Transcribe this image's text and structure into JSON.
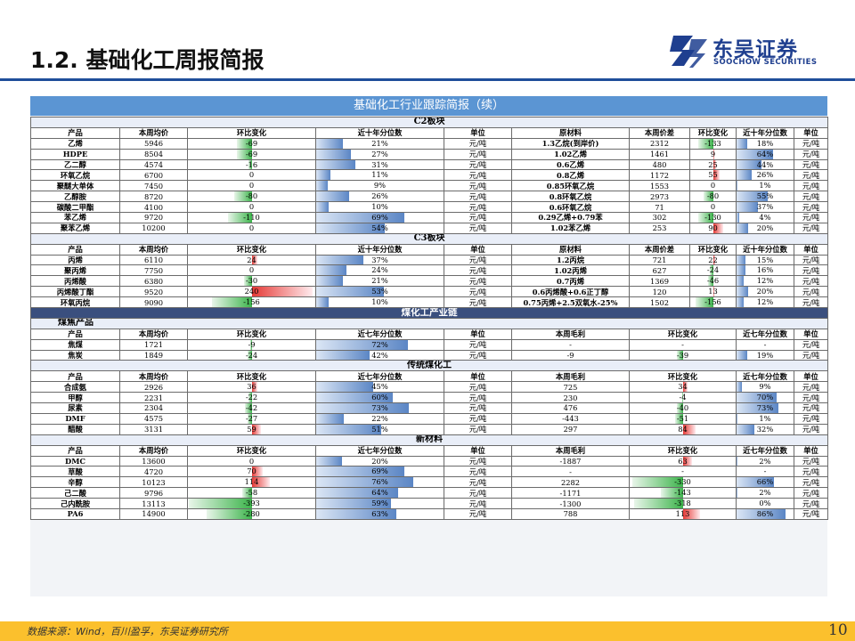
{
  "header": {
    "title": "1.2.  基础化工周报简报"
  },
  "logo": {
    "cn": "东吴证券",
    "en": "SOOCHOW SECURITIES"
  },
  "banner": "基础化工行业跟踪简报（续）",
  "colors": {
    "accent_blue": "#1f4e9a",
    "banner_blue": "#5b95d3",
    "section_dark": "#3a4f7e",
    "bar_green": "#3cb44b",
    "bar_red": "#e53935",
    "bar_blue": "#5b86c5",
    "footer_yellow": "#fbc02d"
  },
  "c2": {
    "title": "C2板块",
    "headers": [
      "产品",
      "本周均价",
      "环比变化",
      "近十年分位数",
      "单位",
      "原材料",
      "本周价差",
      "环比变化",
      "近十年分位数",
      "单位"
    ],
    "rows": [
      {
        "p": "乙烯",
        "price": "5946",
        "chg": "-69",
        "pct": "21%",
        "unit": "元/吨",
        "raw": "1.3乙烷(到岸价)",
        "spread": "2312",
        "schg": "-133",
        "spct": "18%",
        "sunit": "元/吨",
        "v1": -69,
        "v2": 0.21,
        "v3": -133,
        "v4": 0.18
      },
      {
        "p": "HDPE",
        "price": "8504",
        "chg": "-69",
        "pct": "27%",
        "unit": "元/吨",
        "raw": "1.02乙烯",
        "spread": "1461",
        "schg": "9",
        "spct": "64%",
        "sunit": "元/吨",
        "v1": -69,
        "v2": 0.27,
        "v3": 9,
        "v4": 0.64
      },
      {
        "p": "乙二醇",
        "price": "4574",
        "chg": "-16",
        "pct": "31%",
        "unit": "元/吨",
        "raw": "0.6乙烯",
        "spread": "480",
        "schg": "25",
        "spct": "44%",
        "sunit": "元/吨",
        "v1": -16,
        "v2": 0.31,
        "v3": 25,
        "v4": 0.44
      },
      {
        "p": "环氧乙烷",
        "price": "6700",
        "chg": "0",
        "pct": "11%",
        "unit": "元/吨",
        "raw": "0.8乙烯",
        "spread": "1172",
        "schg": "55",
        "spct": "26%",
        "sunit": "元/吨",
        "v1": 0,
        "v2": 0.11,
        "v3": 55,
        "v4": 0.26
      },
      {
        "p": "聚醚大单体",
        "price": "7450",
        "chg": "0",
        "pct": "9%",
        "unit": "元/吨",
        "raw": "0.85环氧乙烷",
        "spread": "1553",
        "schg": "0",
        "spct": "1%",
        "sunit": "元/吨",
        "v1": 0,
        "v2": 0.09,
        "v3": 0,
        "v4": 0.01
      },
      {
        "p": "乙醇胺",
        "price": "8720",
        "chg": "-80",
        "pct": "26%",
        "unit": "元/吨",
        "raw": "0.8环氧乙烷",
        "spread": "2973",
        "schg": "-80",
        "spct": "55%",
        "sunit": "元/吨",
        "v1": -80,
        "v2": 0.26,
        "v3": -80,
        "v4": 0.55
      },
      {
        "p": "碳酸二甲酯",
        "price": "4100",
        "chg": "0",
        "pct": "10%",
        "unit": "元/吨",
        "raw": "0.6环氧乙烷",
        "spread": "71",
        "schg": "0",
        "spct": "37%",
        "sunit": "元/吨",
        "v1": 0,
        "v2": 0.1,
        "v3": 0,
        "v4": 0.37
      },
      {
        "p": "苯乙烯",
        "price": "9720",
        "chg": "-110",
        "pct": "69%",
        "unit": "元/吨",
        "raw": "0.29乙烯+0.79苯",
        "spread": "302",
        "schg": "-130",
        "spct": "4%",
        "sunit": "元/吨",
        "v1": -110,
        "v2": 0.69,
        "v3": -130,
        "v4": 0.04
      },
      {
        "p": "聚苯乙烯",
        "price": "10200",
        "chg": "0",
        "pct": "54%",
        "unit": "元/吨",
        "raw": "1.02苯乙烯",
        "spread": "253",
        "schg": "90",
        "spct": "20%",
        "sunit": "元/吨",
        "v1": 0,
        "v2": 0.54,
        "v3": 90,
        "v4": 0.2
      }
    ]
  },
  "c3": {
    "title": "C3板块",
    "headers": [
      "产品",
      "本周均价",
      "环比变化",
      "近十年分位数",
      "单位",
      "原材料",
      "本周价差",
      "环比变化",
      "近十年分位数",
      "单位"
    ],
    "rows": [
      {
        "p": "丙烯",
        "price": "6110",
        "chg": "24",
        "pct": "37%",
        "unit": "元/吨",
        "raw": "1.2丙烷",
        "spread": "721",
        "schg": "22",
        "spct": "15%",
        "sunit": "元/吨",
        "v1": 24,
        "v2": 0.37,
        "v3": 22,
        "v4": 0.15
      },
      {
        "p": "聚丙烯",
        "price": "7750",
        "chg": "0",
        "pct": "24%",
        "unit": "元/吨",
        "raw": "1.02丙烯",
        "spread": "627",
        "schg": "-24",
        "spct": "16%",
        "sunit": "元/吨",
        "v1": 0,
        "v2": 0.24,
        "v3": -24,
        "v4": 0.16
      },
      {
        "p": "丙烯酸",
        "price": "6380",
        "chg": "-30",
        "pct": "21%",
        "unit": "元/吨",
        "raw": "0.7丙烯",
        "spread": "1369",
        "schg": "-46",
        "spct": "12%",
        "sunit": "元/吨",
        "v1": -30,
        "v2": 0.21,
        "v3": -46,
        "v4": 0.12
      },
      {
        "p": "丙烯酸丁酯",
        "price": "9520",
        "chg": "240",
        "pct": "53%",
        "unit": "元/吨",
        "raw": "0.6丙烯酸+0.6正丁醇",
        "spread": "120",
        "schg": "13",
        "spct": "20%",
        "sunit": "元/吨",
        "v1": 240,
        "v2": 0.53,
        "v3": 13,
        "v4": 0.2
      },
      {
        "p": "环氧丙烷",
        "price": "9090",
        "chg": "-156",
        "pct": "10%",
        "unit": "元/吨",
        "raw": "0.75丙烯+2.5双氧水-25%",
        "spread": "1502",
        "schg": "-156",
        "spct": "12%",
        "sunit": "元/吨",
        "v1": -156,
        "v2": 0.1,
        "v3": -156,
        "v4": 0.12
      }
    ]
  },
  "coal": {
    "title": "煤化工产业链",
    "coking": {
      "title": "煤焦产品",
      "headers": [
        "产品",
        "本周均价",
        "环比变化",
        "近七年分位数",
        "单位",
        "本周毛利",
        "环比变化",
        "近七年分位数",
        "单位"
      ],
      "rows": [
        {
          "p": "焦煤",
          "price": "1721",
          "chg": "-9",
          "pct": "72%",
          "unit": "元/吨",
          "gm": "-",
          "gchg": "-",
          "gpct": "-",
          "gunit": "元/吨",
          "v1": -9,
          "v2": 0.72,
          "v3": null,
          "v4": null
        },
        {
          "p": "焦炭",
          "price": "1849",
          "chg": "-24",
          "pct": "42%",
          "unit": "元/吨",
          "gm": "-9",
          "gchg": "-39",
          "gpct": "19%",
          "gunit": "元/吨",
          "v1": -24,
          "v2": 0.42,
          "v3": -39,
          "v4": 0.19
        }
      ]
    },
    "traditional": {
      "title": "传统煤化工",
      "headers": [
        "产品",
        "本周均价",
        "环比变化",
        "近七年分位数",
        "单位",
        "本周毛利",
        "环比变化",
        "近七年分位数",
        "单位"
      ],
      "rows": [
        {
          "p": "合成氨",
          "price": "2926",
          "chg": "36",
          "pct": "45%",
          "unit": "元/吨",
          "gm": "725",
          "gchg": "34",
          "gpct": "9%",
          "gunit": "元/吨",
          "v1": 36,
          "v2": 0.45,
          "v3": 34,
          "v4": 0.09
        },
        {
          "p": "甲醇",
          "price": "2231",
          "chg": "-22",
          "pct": "60%",
          "unit": "元/吨",
          "gm": "230",
          "gchg": "-4",
          "gpct": "70%",
          "gunit": "元/吨",
          "v1": -22,
          "v2": 0.6,
          "v3": -4,
          "v4": 0.7
        },
        {
          "p": "尿素",
          "price": "2304",
          "chg": "-42",
          "pct": "73%",
          "unit": "元/吨",
          "gm": "476",
          "gchg": "-40",
          "gpct": "73%",
          "gunit": "元/吨",
          "v1": -42,
          "v2": 0.73,
          "v3": -40,
          "v4": 0.73
        },
        {
          "p": "DMF",
          "price": "4575",
          "chg": "-27",
          "pct": "22%",
          "unit": "元/吨",
          "gm": "-443",
          "gchg": "-51",
          "gpct": "1%",
          "gunit": "元/吨",
          "v1": -27,
          "v2": 0.22,
          "v3": -51,
          "v4": 0.01
        },
        {
          "p": "醋酸",
          "price": "3131",
          "chg": "59",
          "pct": "51%",
          "unit": "元/吨",
          "gm": "297",
          "gchg": "84",
          "gpct": "32%",
          "gunit": "元/吨",
          "v1": 59,
          "v2": 0.51,
          "v3": 84,
          "v4": 0.32
        }
      ]
    },
    "materials": {
      "title": "新材料",
      "headers": [
        "产品",
        "本周均价",
        "环比变化",
        "近七年分位数",
        "单位",
        "本周毛利",
        "环比变化",
        "近七年分位数",
        "单位"
      ],
      "rows": [
        {
          "p": "DMC",
          "price": "13600",
          "chg": "0",
          "pct": "20%",
          "unit": "元/吨",
          "gm": "-1887",
          "gchg": "63",
          "gpct": "2%",
          "gunit": "元/吨",
          "v1": 0,
          "v2": 0.2,
          "v3": 63,
          "v4": 0.02
        },
        {
          "p": "草酸",
          "price": "4720",
          "chg": "70",
          "pct": "69%",
          "unit": "元/吨",
          "gm": "-",
          "gchg": "-",
          "gpct": "-",
          "gunit": "元/吨",
          "v1": 70,
          "v2": 0.69,
          "v3": null,
          "v4": null
        },
        {
          "p": "辛醇",
          "price": "10123",
          "chg": "114",
          "pct": "76%",
          "unit": "元/吨",
          "gm": "2282",
          "gchg": "-330",
          "gpct": "66%",
          "gunit": "元/吨",
          "v1": 114,
          "v2": 0.76,
          "v3": -330,
          "v4": 0.66
        },
        {
          "p": "己二酸",
          "price": "9796",
          "chg": "-58",
          "pct": "64%",
          "unit": "元/吨",
          "gm": "-1171",
          "gchg": "-143",
          "gpct": "2%",
          "gunit": "元/吨",
          "v1": -58,
          "v2": 0.64,
          "v3": -143,
          "v4": 0.02
        },
        {
          "p": "己内酰胺",
          "price": "13113",
          "chg": "-393",
          "pct": "59%",
          "unit": "元/吨",
          "gm": "-1300",
          "gchg": "-318",
          "gpct": "0%",
          "gunit": "元/吨",
          "v1": -393,
          "v2": 0.59,
          "v3": -318,
          "v4": 0.0
        },
        {
          "p": "PA6",
          "price": "14900",
          "chg": "-280",
          "pct": "63%",
          "unit": "元/吨",
          "gm": "788",
          "gchg": "113",
          "gpct": "86%",
          "gunit": "元/吨",
          "v1": -280,
          "v2": 0.63,
          "v3": 113,
          "v4": 0.86
        }
      ]
    }
  },
  "footer": {
    "source": "数据来源：Wind，百川盈孚，东吴证券研究所",
    "page": "10"
  }
}
